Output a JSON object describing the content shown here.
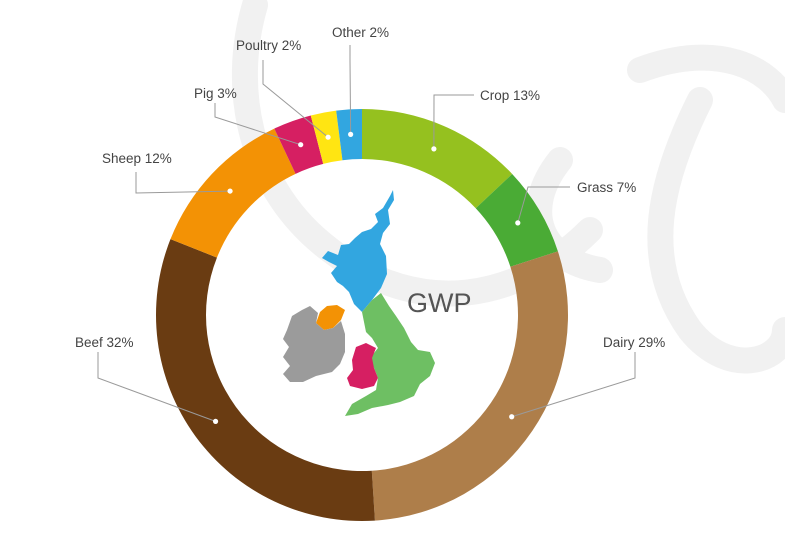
{
  "chart_data": {
    "type": "pie",
    "variant": "donut",
    "title": "",
    "center_label": "GWP",
    "slices": [
      {
        "name": "Crop",
        "value": 13,
        "label": "Crop 13%",
        "color": "#95c11f"
      },
      {
        "name": "Grass",
        "value": 7,
        "label": "Grass 7%",
        "color": "#4aab35"
      },
      {
        "name": "Dairy",
        "value": 29,
        "label": "Dairy 29%",
        "color": "#ae7e4a"
      },
      {
        "name": "Beef",
        "value": 32,
        "label": "Beef 32%",
        "color": "#6a3c12"
      },
      {
        "name": "Sheep",
        "value": 12,
        "label": "Sheep 12%",
        "color": "#f39205"
      },
      {
        "name": "Pig",
        "value": 3,
        "label": "Pig 3%",
        "color": "#d61f62"
      },
      {
        "name": "Poultry",
        "value": 2,
        "label": "Poultry 2%",
        "color": "#ffe512"
      },
      {
        "name": "Other",
        "value": 2,
        "label": "Other 2%",
        "color": "#32a6e0"
      }
    ],
    "start_angle": "12 o'clock, clockwise",
    "legend": "none (direct labels with leader lines)",
    "center_image": "map of the British Isles",
    "map_colors": {
      "scotland": "#32a6e0",
      "northern_ireland": "#f39205",
      "ireland": "#9b9b9b",
      "england": "#6ebf63",
      "wales": "#d61f62"
    }
  }
}
